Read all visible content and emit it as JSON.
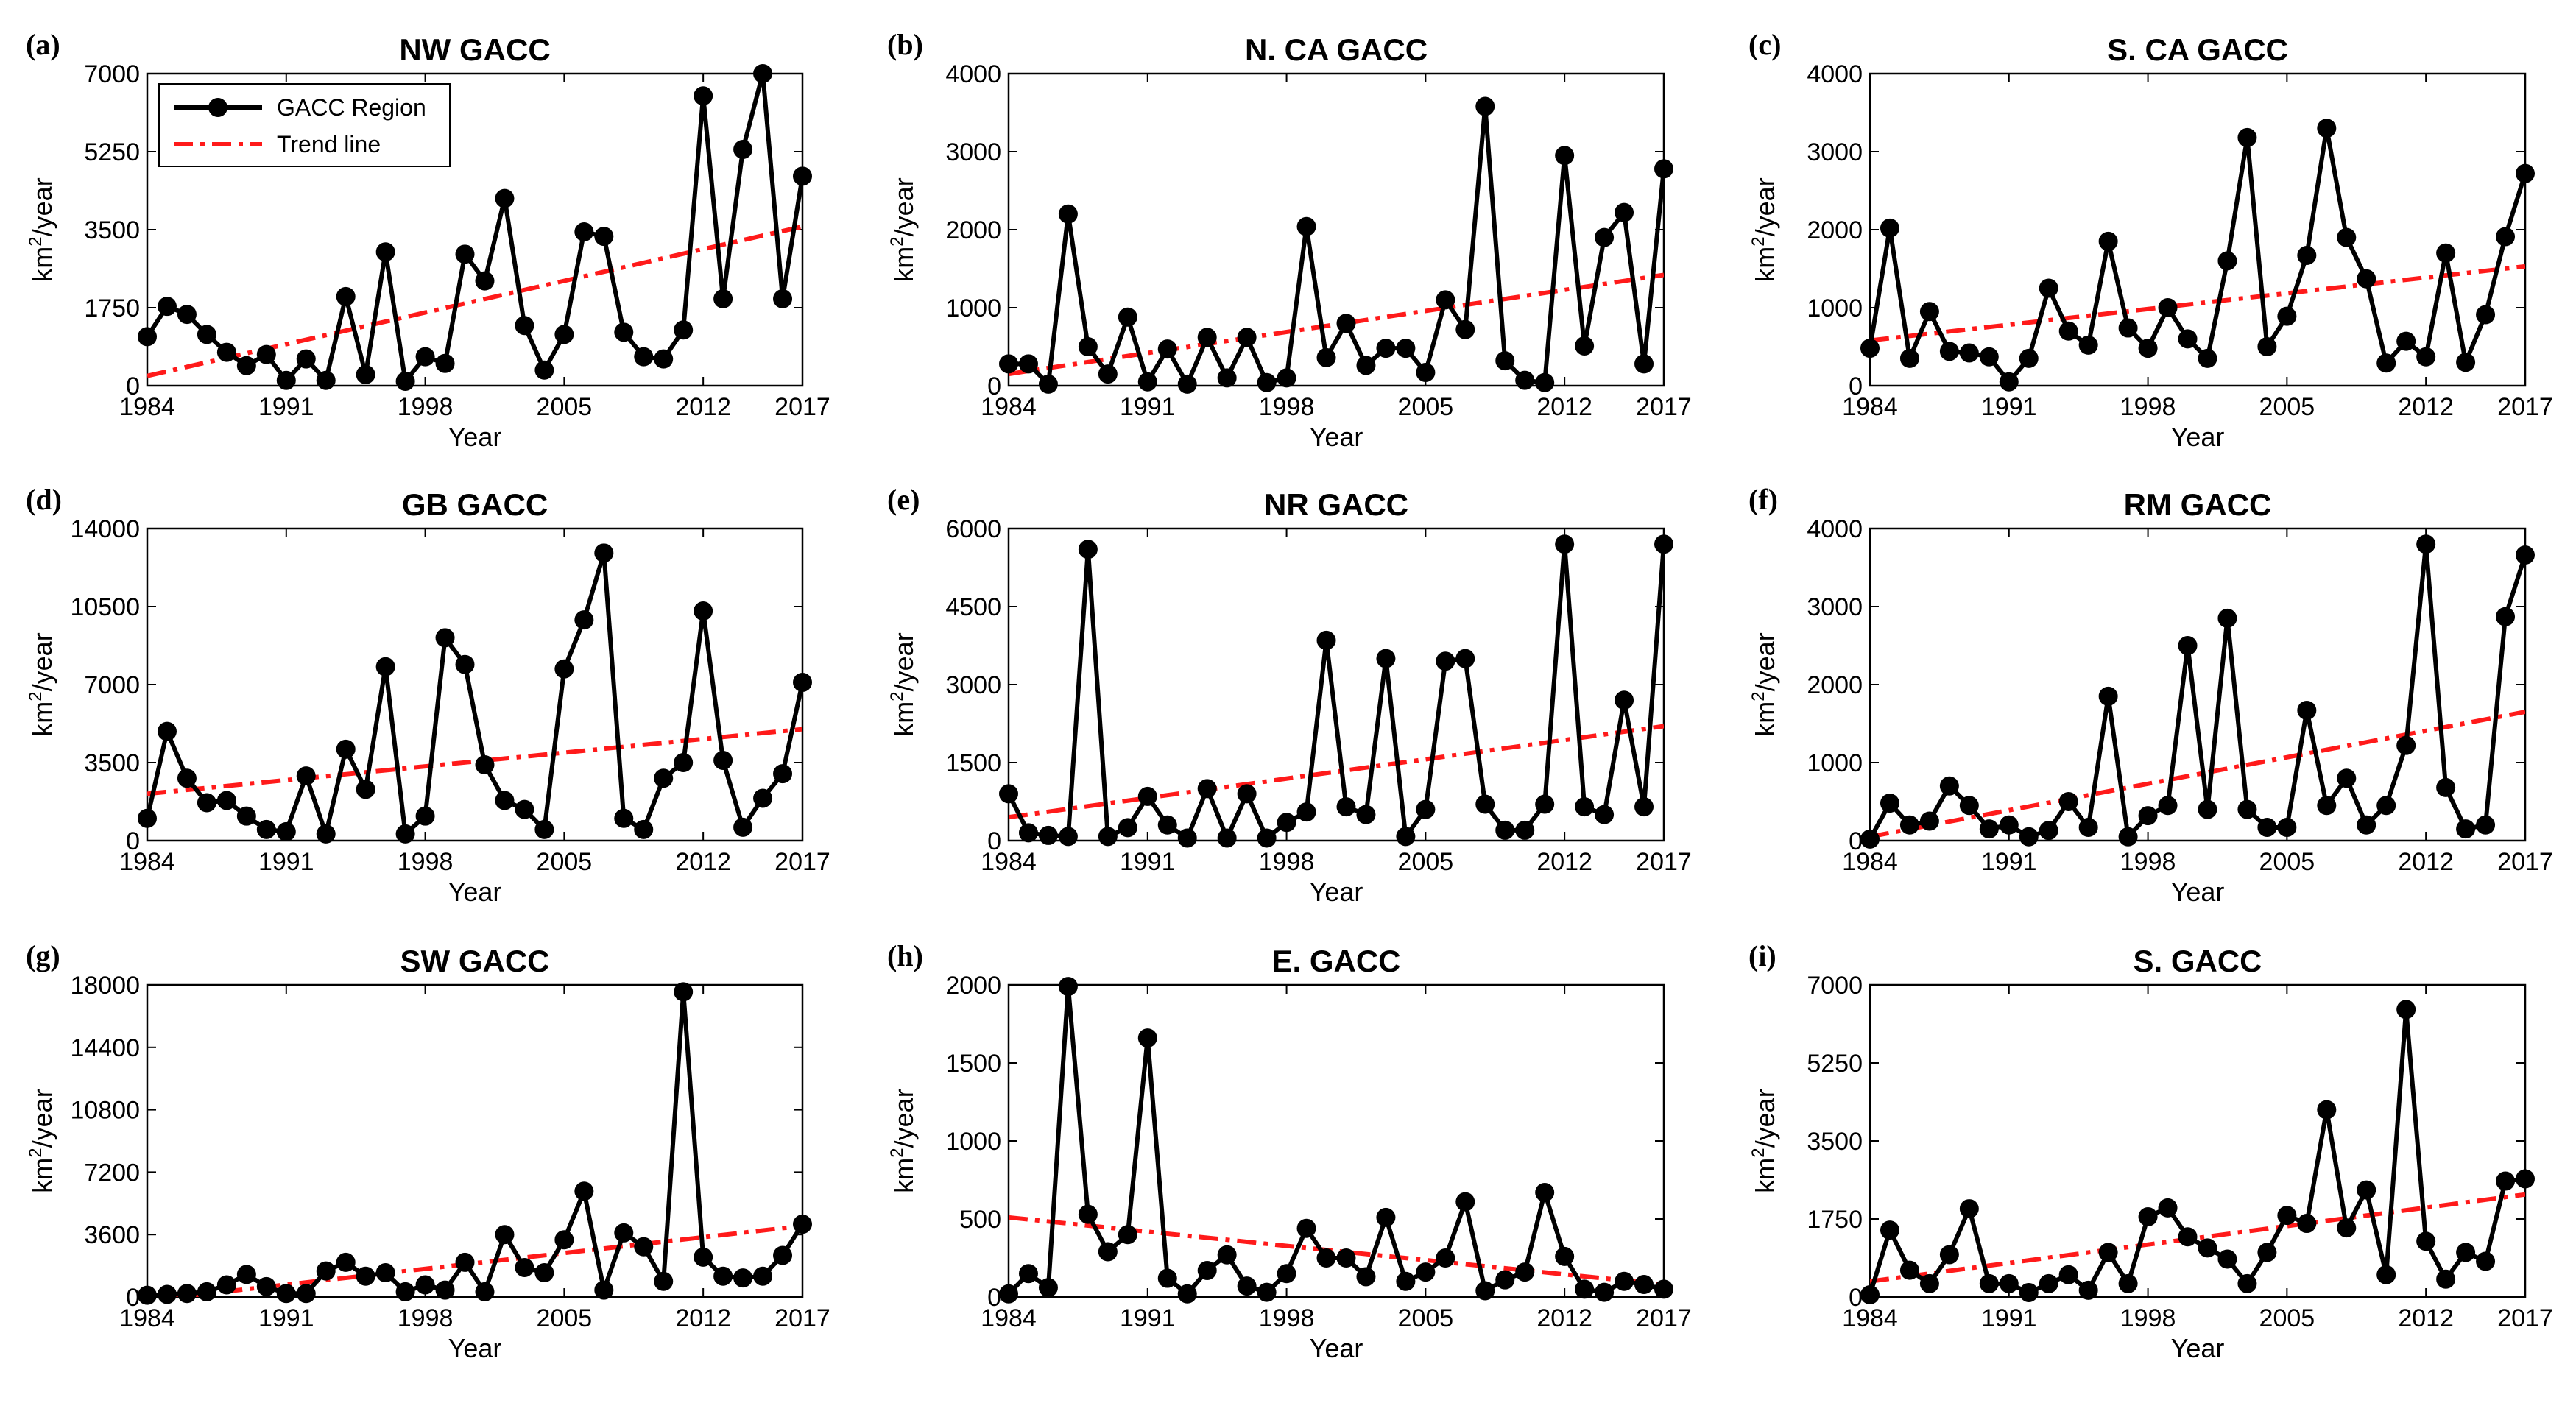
{
  "chart_data": [
    {
      "type": "line",
      "label": "(a)",
      "title": "NW GACC",
      "xlabel": "Year",
      "ylabel": "km2/year",
      "ylabel_base": "km",
      "ylabel_sup": "2",
      "ylabel_rest": "/year",
      "xlim": [
        1984,
        2017
      ],
      "ylim": [
        0,
        7000
      ],
      "xticks": [
        1984,
        1991,
        1998,
        2005,
        2012,
        2017
      ],
      "yticks": [
        0,
        1750,
        3500,
        5250,
        7000
      ],
      "series": [
        {
          "name": "GACC Region",
          "x": [
            1984,
            1985,
            1986,
            1987,
            1988,
            1989,
            1990,
            1991,
            1992,
            1993,
            1994,
            1995,
            1996,
            1997,
            1998,
            1999,
            2000,
            2001,
            2002,
            2003,
            2004,
            2005,
            2006,
            2007,
            2008,
            2009,
            2010,
            2011,
            2012,
            2013,
            2014,
            2015,
            2016,
            2017
          ],
          "values": [
            1100,
            1780,
            1600,
            1150,
            750,
            450,
            700,
            120,
            600,
            120,
            2000,
            250,
            3000,
            100,
            650,
            500,
            2950,
            2350,
            4200,
            1350,
            350,
            1150,
            3450,
            3350,
            1200,
            650,
            600,
            1250,
            6500,
            1950,
            5300,
            7000,
            1950,
            4700
          ]
        }
      ],
      "trend": {
        "name": "Trend line",
        "start": 220,
        "end": 3570
      },
      "legend": {
        "show": true,
        "items": [
          "GACC Region",
          "Trend line"
        ],
        "loc": "top-left"
      }
    },
    {
      "type": "line",
      "label": "(b)",
      "title": "N. CA GACC",
      "xlabel": "Year",
      "ylabel": "km2/year",
      "ylabel_base": "km",
      "ylabel_sup": "2",
      "ylabel_rest": "/year",
      "xlim": [
        1984,
        2017
      ],
      "ylim": [
        0,
        4000
      ],
      "xticks": [
        1984,
        1991,
        1998,
        2005,
        2012,
        2017
      ],
      "yticks": [
        0,
        1000,
        2000,
        3000,
        4000
      ],
      "series": [
        {
          "name": "GACC Region",
          "x": [
            1984,
            1985,
            1986,
            1987,
            1988,
            1989,
            1990,
            1991,
            1992,
            1993,
            1994,
            1995,
            1996,
            1997,
            1998,
            1999,
            2000,
            2001,
            2002,
            2003,
            2004,
            2005,
            2006,
            2007,
            2008,
            2009,
            2010,
            2011,
            2012,
            2013,
            2014,
            2015,
            2016,
            2017
          ],
          "values": [
            280,
            280,
            20,
            2200,
            500,
            150,
            880,
            50,
            470,
            20,
            620,
            100,
            620,
            40,
            100,
            2040,
            360,
            800,
            260,
            480,
            480,
            170,
            1100,
            720,
            3580,
            320,
            70,
            40,
            2950,
            510,
            1900,
            2220,
            280,
            2780
          ]
        }
      ],
      "trend": {
        "name": "Trend line",
        "start": 150,
        "end": 1420
      },
      "legend": {
        "show": false
      }
    },
    {
      "type": "line",
      "label": "(c)",
      "title": "S. CA GACC",
      "xlabel": "Year",
      "ylabel": "km2/year",
      "ylabel_base": "km",
      "ylabel_sup": "2",
      "ylabel_rest": "/year",
      "xlim": [
        1984,
        2017
      ],
      "ylim": [
        0,
        4000
      ],
      "xticks": [
        1984,
        1991,
        1998,
        2005,
        2012,
        2017
      ],
      "yticks": [
        0,
        1000,
        2000,
        3000,
        4000
      ],
      "series": [
        {
          "name": "GACC Region",
          "x": [
            1984,
            1985,
            1986,
            1987,
            1988,
            1989,
            1990,
            1991,
            1992,
            1993,
            1994,
            1995,
            1996,
            1997,
            1998,
            1999,
            2000,
            2001,
            2002,
            2003,
            2004,
            2005,
            2006,
            2007,
            2008,
            2009,
            2010,
            2011,
            2012,
            2013,
            2014,
            2015,
            2016,
            2017
          ],
          "values": [
            480,
            2020,
            350,
            950,
            440,
            420,
            370,
            50,
            350,
            1250,
            700,
            520,
            1850,
            740,
            480,
            1000,
            600,
            350,
            1600,
            3180,
            500,
            890,
            1670,
            3300,
            1900,
            1370,
            290,
            570,
            370,
            1700,
            300,
            910,
            1910,
            2720
          ]
        }
      ],
      "trend": {
        "name": "Trend line",
        "start": 580,
        "end": 1530
      },
      "legend": {
        "show": false
      }
    },
    {
      "type": "line",
      "label": "(d)",
      "title": "GB GACC",
      "xlabel": "Year",
      "ylabel": "km2/year",
      "ylabel_base": "km",
      "ylabel_sup": "2",
      "ylabel_rest": "/year",
      "xlim": [
        1984,
        2017
      ],
      "ylim": [
        0,
        14000
      ],
      "xticks": [
        1984,
        1991,
        1998,
        2005,
        2012,
        2017
      ],
      "yticks": [
        0,
        3500,
        7000,
        10500,
        14000
      ],
      "series": [
        {
          "name": "GACC Region",
          "x": [
            1984,
            1985,
            1986,
            1987,
            1988,
            1989,
            1990,
            1991,
            1992,
            1993,
            1994,
            1995,
            1996,
            1997,
            1998,
            1999,
            2000,
            2001,
            2002,
            2003,
            2004,
            2005,
            2006,
            2007,
            2008,
            2009,
            2010,
            2011,
            2012,
            2013,
            2014,
            2015,
            2016,
            2017
          ],
          "values": [
            1000,
            4900,
            2800,
            1700,
            1800,
            1100,
            500,
            400,
            2900,
            300,
            4100,
            2300,
            7800,
            300,
            1100,
            9100,
            7900,
            3400,
            1800,
            1400,
            500,
            7700,
            9900,
            12900,
            1000,
            500,
            2800,
            3500,
            10300,
            3600,
            600,
            1900,
            3000,
            7100
          ]
        }
      ],
      "trend": {
        "name": "Trend line",
        "start": 2100,
        "end": 5000
      },
      "legend": {
        "show": false
      }
    },
    {
      "type": "line",
      "label": "(e)",
      "title": "NR GACC",
      "xlabel": "Year",
      "ylabel": "km2/year",
      "ylabel_base": "km",
      "ylabel_sup": "2",
      "ylabel_rest": "/year",
      "xlim": [
        1984,
        2017
      ],
      "ylim": [
        0,
        6000
      ],
      "xticks": [
        1984,
        1991,
        1998,
        2005,
        2012,
        2017
      ],
      "yticks": [
        0,
        1500,
        3000,
        4500,
        6000
      ],
      "series": [
        {
          "name": "GACC Region",
          "x": [
            1984,
            1985,
            1986,
            1987,
            1988,
            1989,
            1990,
            1991,
            1992,
            1993,
            1994,
            1995,
            1996,
            1997,
            1998,
            1999,
            2000,
            2001,
            2002,
            2003,
            2004,
            2005,
            2006,
            2007,
            2008,
            2009,
            2010,
            2011,
            2012,
            2013,
            2014,
            2015,
            2016,
            2017
          ],
          "values": [
            900,
            150,
            100,
            80,
            5600,
            80,
            250,
            850,
            300,
            50,
            1000,
            50,
            900,
            50,
            350,
            550,
            3850,
            650,
            500,
            3500,
            80,
            600,
            3450,
            3500,
            700,
            200,
            200,
            700,
            5700,
            650,
            500,
            2700,
            650,
            5700
          ]
        }
      ],
      "trend": {
        "name": "Trend line",
        "start": 450,
        "end": 2200
      },
      "legend": {
        "show": false
      }
    },
    {
      "type": "line",
      "label": "(f)",
      "title": "RM GACC",
      "xlabel": "Year",
      "ylabel": "km2/year",
      "ylabel_base": "km",
      "ylabel_sup": "2",
      "ylabel_rest": "/year",
      "xlim": [
        1984,
        2017
      ],
      "ylim": [
        0,
        4000
      ],
      "xticks": [
        1984,
        1991,
        1998,
        2005,
        2012,
        2017
      ],
      "yticks": [
        0,
        1000,
        2000,
        3000,
        4000
      ],
      "series": [
        {
          "name": "GACC Region",
          "x": [
            1984,
            1985,
            1986,
            1987,
            1988,
            1989,
            1990,
            1991,
            1992,
            1993,
            1994,
            1995,
            1996,
            1997,
            1998,
            1999,
            2000,
            2001,
            2002,
            2003,
            2004,
            2005,
            2006,
            2007,
            2008,
            2009,
            2010,
            2011,
            2012,
            2013,
            2014,
            2015,
            2016,
            2017
          ],
          "values": [
            20,
            480,
            200,
            250,
            700,
            450,
            150,
            200,
            50,
            130,
            500,
            170,
            1850,
            50,
            320,
            450,
            2500,
            400,
            2850,
            400,
            170,
            170,
            1670,
            450,
            800,
            200,
            450,
            1220,
            3800,
            680,
            150,
            200,
            2870,
            3660
          ]
        }
      ],
      "trend": {
        "name": "Trend line",
        "start": 50,
        "end": 1650
      },
      "legend": {
        "show": false
      }
    },
    {
      "type": "line",
      "label": "(g)",
      "title": "SW GACC",
      "xlabel": "Year",
      "ylabel": "km2/year",
      "ylabel_base": "km",
      "ylabel_sup": "2",
      "ylabel_rest": "/year",
      "xlim": [
        1984,
        2017
      ],
      "ylim": [
        0,
        18000
      ],
      "xticks": [
        1984,
        1991,
        1998,
        2005,
        2012,
        2017
      ],
      "yticks": [
        0,
        3600,
        7200,
        10800,
        14400,
        18000
      ],
      "series": [
        {
          "name": "GACC Region",
          "x": [
            1984,
            1985,
            1986,
            1987,
            1988,
            1989,
            1990,
            1991,
            1992,
            1993,
            1994,
            1995,
            1996,
            1997,
            1998,
            1999,
            2000,
            2001,
            2002,
            2003,
            2004,
            2005,
            2006,
            2007,
            2008,
            2009,
            2010,
            2011,
            2012,
            2013,
            2014,
            2015,
            2016,
            2017
          ],
          "values": [
            100,
            150,
            200,
            300,
            700,
            1300,
            600,
            200,
            200,
            1500,
            2000,
            1200,
            1400,
            300,
            700,
            400,
            2000,
            300,
            3600,
            1700,
            1400,
            3300,
            6100,
            400,
            3700,
            2900,
            900,
            17600,
            2300,
            1200,
            1100,
            1200,
            2400,
            4200
          ]
        }
      ],
      "trend": {
        "name": "Trend line",
        "start": -200,
        "end": 4100
      },
      "legend": {
        "show": false
      }
    },
    {
      "type": "line",
      "label": "(h)",
      "title": "E. GACC",
      "xlabel": "Year",
      "ylabel": "km2/year",
      "ylabel_base": "km",
      "ylabel_sup": "2",
      "ylabel_rest": "/year",
      "xlim": [
        1984,
        2017
      ],
      "ylim": [
        0,
        2000
      ],
      "xticks": [
        1984,
        1991,
        1998,
        2005,
        2012,
        2017
      ],
      "yticks": [
        0,
        500,
        1000,
        1500,
        2000
      ],
      "series": [
        {
          "name": "GACC Region",
          "x": [
            1984,
            1985,
            1986,
            1987,
            1988,
            1989,
            1990,
            1991,
            1992,
            1993,
            1994,
            1995,
            1996,
            1997,
            1998,
            1999,
            2000,
            2001,
            2002,
            2003,
            2004,
            2005,
            2006,
            2007,
            2008,
            2009,
            2010,
            2011,
            2012,
            2013,
            2014,
            2015,
            2016,
            2017
          ],
          "values": [
            20,
            150,
            60,
            1990,
            530,
            290,
            400,
            1660,
            120,
            20,
            170,
            270,
            70,
            30,
            150,
            440,
            250,
            250,
            130,
            510,
            100,
            160,
            250,
            610,
            40,
            110,
            160,
            670,
            260,
            50,
            30,
            100,
            80,
            50
          ]
        }
      ],
      "trend": {
        "name": "Trend line",
        "start": 510,
        "end": 80
      },
      "legend": {
        "show": false
      }
    },
    {
      "type": "line",
      "label": "(i)",
      "title": "S. GACC",
      "xlabel": "Year",
      "ylabel": "km2/year",
      "ylabel_base": "km",
      "ylabel_sup": "2",
      "ylabel_rest": "/year",
      "xlim": [
        1984,
        2017
      ],
      "ylim": [
        0,
        7000
      ],
      "xticks": [
        1984,
        1991,
        1998,
        2005,
        2012,
        2017
      ],
      "yticks": [
        0,
        1750,
        3500,
        5250,
        7000
      ],
      "series": [
        {
          "name": "GACC Region",
          "x": [
            1984,
            1985,
            1986,
            1987,
            1988,
            1989,
            1990,
            1991,
            1992,
            1993,
            1994,
            1995,
            1996,
            1997,
            1998,
            1999,
            2000,
            2001,
            2002,
            2003,
            2004,
            2005,
            2006,
            2007,
            2008,
            2009,
            2010,
            2011,
            2012,
            2013,
            2014,
            2015,
            2016,
            2017
          ],
          "values": [
            50,
            1500,
            600,
            300,
            950,
            1980,
            300,
            300,
            100,
            300,
            500,
            150,
            1000,
            300,
            1800,
            2000,
            1350,
            1100,
            850,
            300,
            1000,
            1830,
            1650,
            4200,
            1550,
            2400,
            500,
            6450,
            1250,
            400,
            1000,
            800,
            2600,
            2650
          ]
        }
      ],
      "trend": {
        "name": "Trend line",
        "start": 350,
        "end": 2300
      },
      "legend": {
        "show": false
      }
    }
  ]
}
